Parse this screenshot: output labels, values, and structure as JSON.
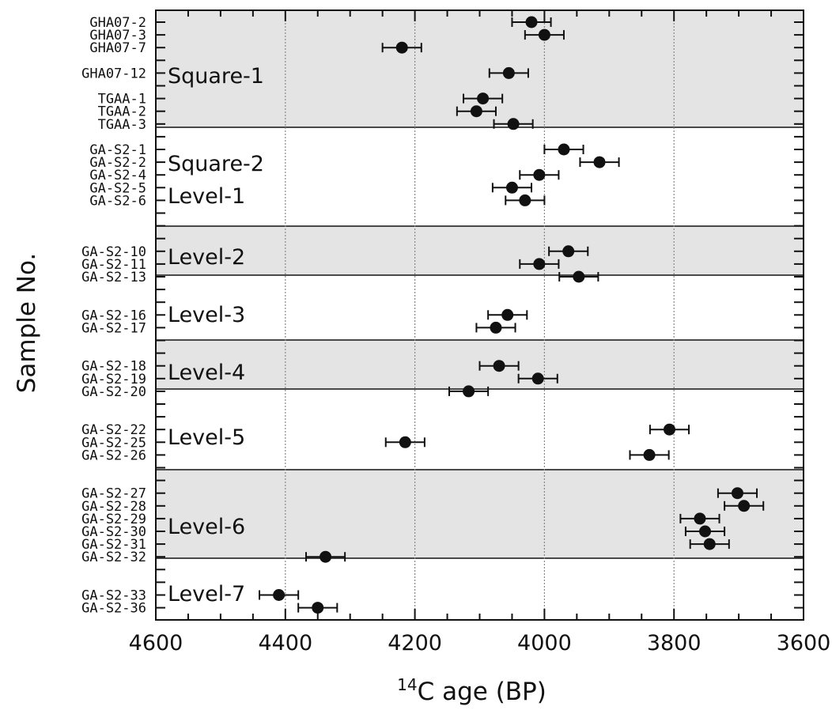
{
  "chart_data": {
    "type": "scatter",
    "xlabel_sup": "14",
    "xlabel": "C age   (BP)",
    "ylabel": "Sample No.",
    "xlim": [
      4600,
      3600
    ],
    "x_reversed": true,
    "x_ticks": [
      "4600",
      "4400",
      "4200",
      "4000",
      "3800",
      "3600"
    ],
    "grid_x": [
      4400,
      4200,
      4000,
      3800
    ],
    "error_bars": true,
    "groups": [
      {
        "label": "Square-1",
        "shaded": true
      },
      {
        "label": "Square-2",
        "shaded": false
      },
      {
        "label": "Level-1",
        "shaded": false
      },
      {
        "label": "Level-2",
        "shaded": true
      },
      {
        "label": "Level-3",
        "shaded": false
      },
      {
        "label": "Level-4",
        "shaded": true
      },
      {
        "label": "Level-5",
        "shaded": false
      },
      {
        "label": "Level-6",
        "shaded": true
      },
      {
        "label": "Level-7",
        "shaded": false
      }
    ],
    "points": [
      {
        "sample": "GHA07-2",
        "age": 4020,
        "err": 30
      },
      {
        "sample": "GHA07-3",
        "age": 4000,
        "err": 30
      },
      {
        "sample": "GHA07-7",
        "age": 4220,
        "err": 30
      },
      {
        "sample": "GHA07-12",
        "age": 4055,
        "err": 30
      },
      {
        "sample": "TGAA-1",
        "age": 4095,
        "err": 30
      },
      {
        "sample": "TGAA-2",
        "age": 4105,
        "err": 30
      },
      {
        "sample": "TGAA-3",
        "age": 4048,
        "err": 30
      },
      {
        "sample": "GA-S2-1",
        "age": 3970,
        "err": 30
      },
      {
        "sample": "GA-S2-2",
        "age": 3915,
        "err": 30
      },
      {
        "sample": "GA-S2-4",
        "age": 4008,
        "err": 30
      },
      {
        "sample": "GA-S2-5",
        "age": 4050,
        "err": 30
      },
      {
        "sample": "GA-S2-6",
        "age": 4030,
        "err": 30
      },
      {
        "sample": "GA-S2-10",
        "age": 3963,
        "err": 30
      },
      {
        "sample": "GA-S2-11",
        "age": 4008,
        "err": 30
      },
      {
        "sample": "GA-S2-13",
        "age": 3947,
        "err": 30
      },
      {
        "sample": "GA-S2-16",
        "age": 4057,
        "err": 30
      },
      {
        "sample": "GA-S2-17",
        "age": 4075,
        "err": 30
      },
      {
        "sample": "GA-S2-18",
        "age": 4070,
        "err": 30
      },
      {
        "sample": "GA-S2-19",
        "age": 4010,
        "err": 30
      },
      {
        "sample": "GA-S2-20",
        "age": 4117,
        "err": 30
      },
      {
        "sample": "GA-S2-22",
        "age": 3807,
        "err": 30
      },
      {
        "sample": "GA-S2-25",
        "age": 4215,
        "err": 30
      },
      {
        "sample": "GA-S2-26",
        "age": 3838,
        "err": 30
      },
      {
        "sample": "GA-S2-27",
        "age": 3702,
        "err": 30
      },
      {
        "sample": "GA-S2-28",
        "age": 3692,
        "err": 30
      },
      {
        "sample": "GA-S2-29",
        "age": 3760,
        "err": 30
      },
      {
        "sample": "GA-S2-30",
        "age": 3752,
        "err": 30
      },
      {
        "sample": "GA-S2-31",
        "age": 3745,
        "err": 30
      },
      {
        "sample": "GA-S2-32",
        "age": 4338,
        "err": 30
      },
      {
        "sample": "GA-S2-33",
        "age": 4410,
        "err": 30
      },
      {
        "sample": "GA-S2-36",
        "age": 4350,
        "err": 30
      }
    ]
  }
}
